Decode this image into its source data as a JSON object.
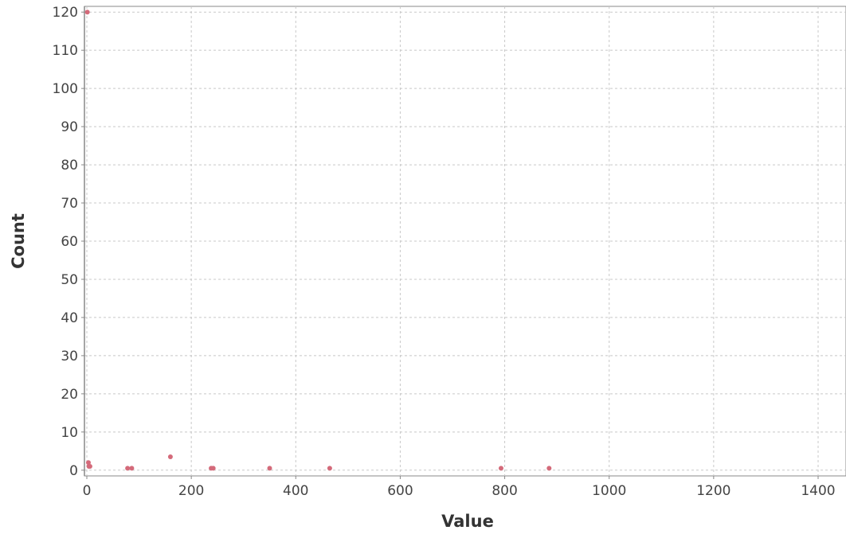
{
  "chart_data": {
    "type": "scatter",
    "xlabel": "Value",
    "ylabel": "Count",
    "xlim": [
      0,
      1450
    ],
    "ylim": [
      -1.5,
      121.5
    ],
    "xticks": [
      0,
      200,
      400,
      600,
      800,
      1000,
      1200,
      1400
    ],
    "yticks": [
      0,
      10,
      20,
      30,
      40,
      50,
      60,
      70,
      80,
      90,
      100,
      110,
      120
    ],
    "grid": true,
    "point_color": "#d46a7a",
    "points": [
      {
        "x": 1,
        "y": 120
      },
      {
        "x": 3,
        "y": 2
      },
      {
        "x": 4,
        "y": 1
      },
      {
        "x": 6,
        "y": 1
      },
      {
        "x": 78,
        "y": 0.5
      },
      {
        "x": 86,
        "y": 0.5
      },
      {
        "x": 160,
        "y": 3.5
      },
      {
        "x": 238,
        "y": 0.5
      },
      {
        "x": 242,
        "y": 0.5
      },
      {
        "x": 350,
        "y": 0.5
      },
      {
        "x": 465,
        "y": 0.5
      },
      {
        "x": 793,
        "y": 0.5
      },
      {
        "x": 885,
        "y": 0.5
      }
    ]
  }
}
